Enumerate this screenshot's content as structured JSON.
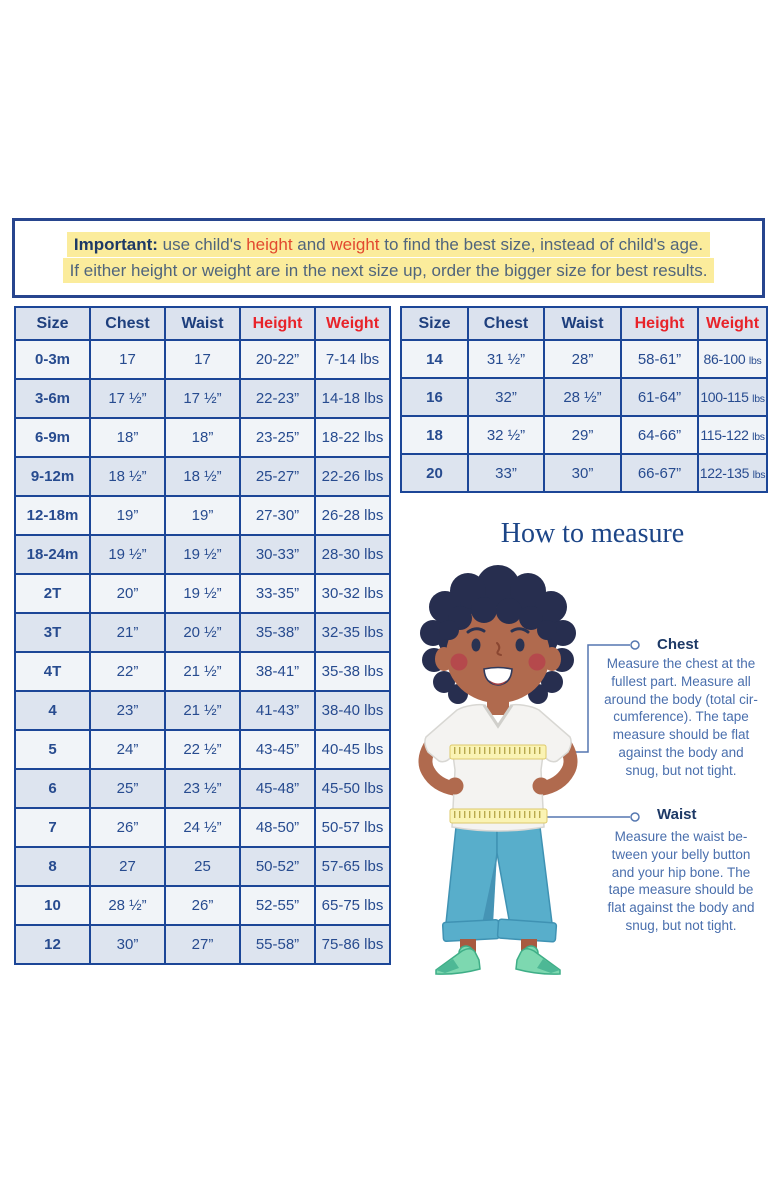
{
  "notice": {
    "line1_parts": [
      {
        "text": "Important:",
        "style": "bold"
      },
      {
        "text": " use child's ",
        "style": "normal"
      },
      {
        "text": "height",
        "style": "red"
      },
      {
        "text": " and ",
        "style": "normal"
      },
      {
        "text": "weight",
        "style": "red"
      },
      {
        "text": " to find the best size, instead of child's age.",
        "style": "normal"
      }
    ],
    "line2": "If either height or weight are in the next size up, order the bigger size for best results."
  },
  "tables": [
    {
      "name": "baby-toddler-kids-sizes",
      "columns": [
        "Size",
        "Chest",
        "Waist",
        "Height",
        "Weight"
      ],
      "red_columns": [
        3,
        4
      ],
      "rows": [
        [
          "0-3m",
          "17",
          "17",
          "20-22”",
          "7-14 lbs"
        ],
        [
          "3-6m",
          "17 ½”",
          "17 ½”",
          "22-23”",
          "14-18 lbs"
        ],
        [
          "6-9m",
          "18”",
          "18”",
          "23-25”",
          "18-22 lbs"
        ],
        [
          "9-12m",
          "18 ½”",
          "18 ½”",
          "25-27”",
          "22-26 lbs"
        ],
        [
          "12-18m",
          "19”",
          "19”",
          "27-30”",
          "26-28 lbs"
        ],
        [
          "18-24m",
          "19 ½”",
          "19 ½”",
          "30-33”",
          "28-30 lbs"
        ],
        [
          "2T",
          "20”",
          "19 ½”",
          "33-35”",
          "30-32 lbs"
        ],
        [
          "3T",
          "21”",
          "20 ½”",
          "35-38”",
          "32-35 lbs"
        ],
        [
          "4T",
          "22”",
          "21 ½”",
          "38-41”",
          "35-38 lbs"
        ],
        [
          "4",
          "23”",
          "21 ½”",
          "41-43”",
          "38-40 lbs"
        ],
        [
          "5",
          "24”",
          "22 ½”",
          "43-45”",
          "40-45 lbs"
        ],
        [
          "6",
          "25”",
          "23 ½”",
          "45-48”",
          "45-50 lbs"
        ],
        [
          "7",
          "26”",
          "24 ½”",
          "48-50”",
          "50-57 lbs"
        ],
        [
          "8",
          "27",
          "25",
          "50-52”",
          "57-65 lbs"
        ],
        [
          "10",
          "28 ½”",
          "26”",
          "52-55”",
          "65-75 lbs"
        ],
        [
          "12",
          "30”",
          "27”",
          "55-58”",
          "75-86 lbs"
        ]
      ]
    },
    {
      "name": "big-kids-sizes",
      "columns": [
        "Size",
        "Chest",
        "Waist",
        "Height",
        "Weight"
      ],
      "red_columns": [
        3,
        4
      ],
      "small_unit": true,
      "rows": [
        [
          "14",
          "31 ½”",
          "28”",
          "58-61”",
          "86-100 lbs"
        ],
        [
          "16",
          "32”",
          "28 ½”",
          "61-64”",
          "100-115 lbs"
        ],
        [
          "18",
          "32 ½”",
          "29”",
          "64-66”",
          "115-122 lbs"
        ],
        [
          "20",
          "33”",
          "30”",
          "66-67”",
          "122-135 lbs"
        ]
      ]
    }
  ],
  "how_to_measure": {
    "title": "How to measure",
    "chest": {
      "label": "Chest",
      "text": "Measure the chest at the\nfullest part. Measure all\naround the body (total cir-\ncumference). The tape\nmeasure should be flat\nagainst the body and\nsnug, but not tight."
    },
    "waist": {
      "label": "Waist",
      "text": "Measure the waist be-\ntween your belly button\nand your hip bone. The\ntape measure should be\nflat against the body and\nsnug, but not tight."
    }
  },
  "colors": {
    "table_border": "#1c4697",
    "table_text_navy": "#274b8f",
    "header_red": "#e8232a",
    "notice_border": "#27458e",
    "notice_highlight": "#fbec9c",
    "notice_red": "#e2492f",
    "title_blue": "#1c4587",
    "annotation_blue": "#4a6fad",
    "row_light": "#f1f4f8",
    "row_dark": "#dde4ef"
  },
  "illustration": {
    "subject": "child with curly hair, white v-neck t-shirt, blue pants, green shoes, yellow measuring tape at chest and waist",
    "skin": "#b06a4e",
    "hair": "#272e4f",
    "shirt": "#f4f3f1",
    "pants": "#58aecb",
    "shoes": "#7dd8b0",
    "tape": "#faf3b4"
  }
}
